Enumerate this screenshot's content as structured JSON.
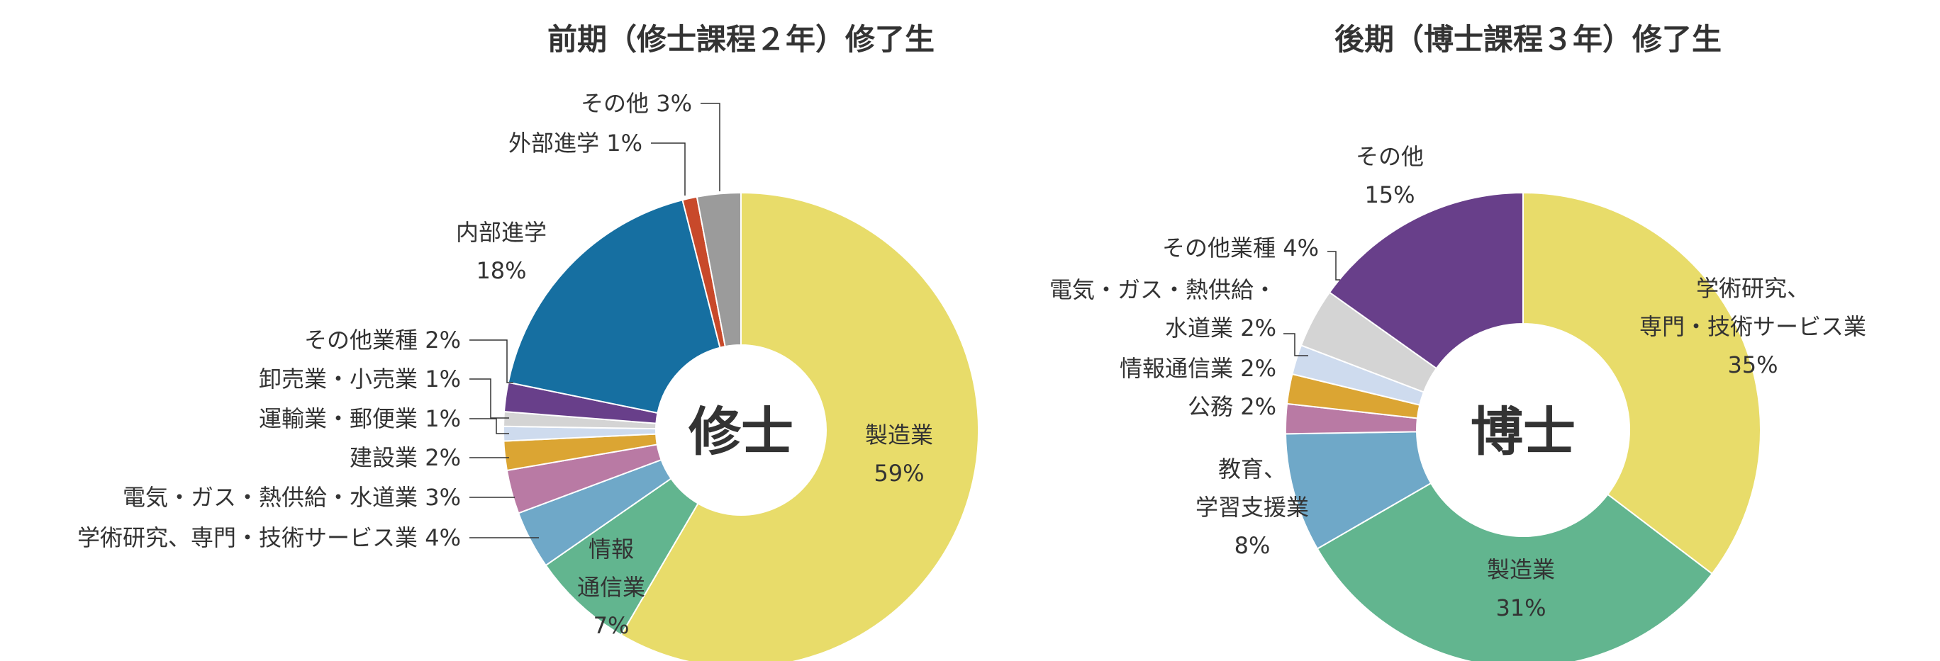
{
  "chart_data": [
    {
      "type": "pie",
      "title": "前期（修士課程２年）修了生",
      "center_label": "修士",
      "slices": [
        {
          "lines": [
            "製造業",
            "59%"
          ],
          "value": 59,
          "color": "#E8DC6A"
        },
        {
          "lines": [
            "情報",
            "通信業",
            "7%"
          ],
          "value": 7,
          "color": "#62B58F"
        },
        {
          "lines": [
            "学術研究、専門・技術サービス業 4%"
          ],
          "value": 4,
          "color": "#6FA8C8"
        },
        {
          "lines": [
            "電気・ガス・熱供給・水道業 3%"
          ],
          "value": 3,
          "color": "#B97AA4"
        },
        {
          "lines": [
            "建設業 2%"
          ],
          "value": 2,
          "color": "#DBA533"
        },
        {
          "lines": [
            "運輸業・郵便業 1%"
          ],
          "value": 1,
          "color": "#CEDBEE"
        },
        {
          "lines": [
            "卸売業・小売業 1%"
          ],
          "value": 1,
          "color": "#D4D4D4"
        },
        {
          "lines": [
            "その他業種 2%"
          ],
          "value": 2,
          "color": "#683F8A"
        },
        {
          "lines": [
            "内部進学",
            "18%"
          ],
          "value": 18,
          "color": "#166FA1"
        },
        {
          "lines": [
            "外部進学 1%"
          ],
          "value": 1,
          "color": "#C8492A"
        },
        {
          "lines": [
            "その他 3%"
          ],
          "value": 3,
          "color": "#9B9B9B"
        }
      ]
    },
    {
      "type": "pie",
      "title": "後期（博士課程３年）修了生",
      "center_label": "博士",
      "slices": [
        {
          "lines": [
            "学術研究、",
            "専門・技術サービス業",
            "35%"
          ],
          "value": 35,
          "color": "#E8DC6A"
        },
        {
          "lines": [
            "製造業",
            "31%"
          ],
          "value": 31,
          "color": "#62B58F"
        },
        {
          "lines": [
            "教育、",
            "学習支援業",
            "8%"
          ],
          "value": 8,
          "color": "#6FA8C8"
        },
        {
          "lines": [
            "公務 2%"
          ],
          "value": 2,
          "color": "#B97AA4"
        },
        {
          "lines": [
            "情報通信業 2%"
          ],
          "value": 2,
          "color": "#DBA533"
        },
        {
          "lines": [
            "電気・ガス・熱供給・",
            "水道業 2%"
          ],
          "value": 2,
          "color": "#CEDBEE"
        },
        {
          "lines": [
            "その他業種 4%"
          ],
          "value": 4,
          "color": "#D4D4D4"
        },
        {
          "lines": [
            "その他",
            "15%"
          ],
          "value": 15,
          "color": "#683F8A"
        }
      ]
    }
  ]
}
